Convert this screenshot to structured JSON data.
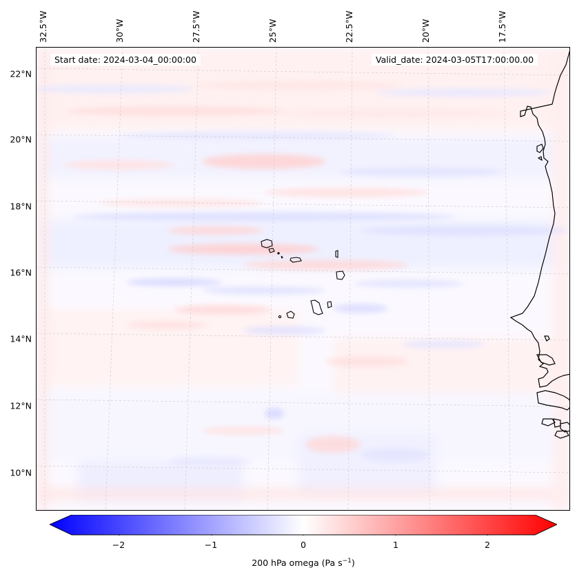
{
  "start_date": "Start date: 2024-03-04_00:00:00",
  "valid_date": "Valid_date: 2024-03-05T17:00:00.00",
  "lon_labels": [
    "32.5°W",
    "30°W",
    "27.5°W",
    "25°W",
    "22.5°W",
    "20°W",
    "17.5°W"
  ],
  "lat_labels": [
    "22°N",
    "20°N",
    "18°N",
    "16°N",
    "14°N",
    "12°N",
    "10°N"
  ],
  "colorbar": {
    "ticks": [
      "−2",
      "−1",
      "0",
      "1",
      "2"
    ],
    "label_prefix": "200 hPa omega (Pa s",
    "label_exp": "−1",
    "label_suffix": ")",
    "min_color": "#0000ff",
    "mid_color": "#ffffff",
    "max_color": "#ff0000"
  }
}
